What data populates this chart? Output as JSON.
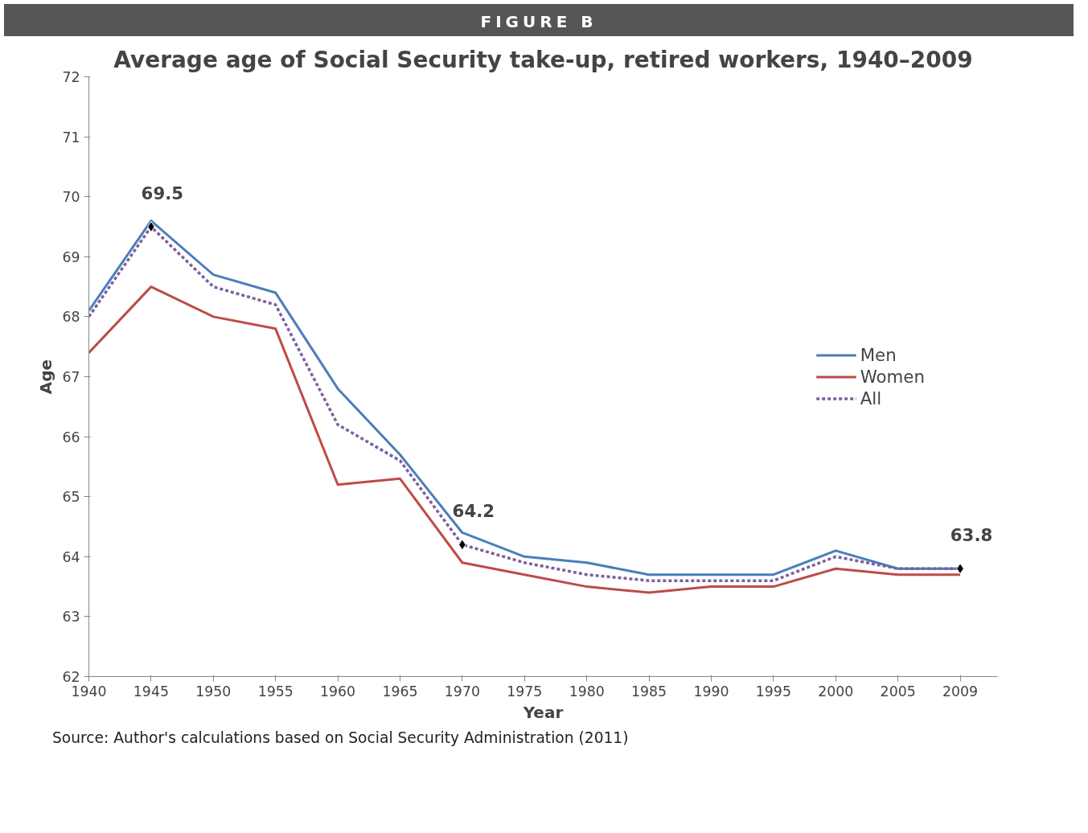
{
  "chart_data": {
    "type": "line",
    "title": "Average age of Social Security take-up, retired workers, 1940–2009",
    "xlabel": "Year",
    "ylabel": "Age",
    "categories": [
      "1940",
      "1945",
      "1950",
      "1955",
      "1960",
      "1965",
      "1970",
      "1975",
      "1980",
      "1985",
      "1990",
      "1995",
      "2000",
      "2005",
      "2009"
    ],
    "series": [
      {
        "name": "Men",
        "color": "#4a7ebb",
        "line_style": "solid",
        "values": [
          68.1,
          69.6,
          68.7,
          68.4,
          66.8,
          65.7,
          64.4,
          64.0,
          63.9,
          63.7,
          63.7,
          63.7,
          64.1,
          63.8,
          63.8
        ]
      },
      {
        "name": "Women",
        "color": "#be4b48",
        "line_style": "solid",
        "values": [
          67.4,
          68.5,
          68.0,
          67.8,
          65.2,
          65.3,
          63.9,
          63.7,
          63.5,
          63.4,
          63.5,
          63.5,
          63.8,
          63.7,
          63.7
        ]
      },
      {
        "name": "All",
        "color": "#7d60a0",
        "line_style": "dotted",
        "values": [
          68.0,
          69.5,
          68.5,
          68.2,
          66.2,
          65.6,
          64.2,
          63.9,
          63.7,
          63.6,
          63.6,
          63.6,
          64.0,
          63.8,
          63.8
        ]
      }
    ],
    "ylim": [
      62,
      72
    ],
    "yticks": [
      62,
      63,
      64,
      65,
      66,
      67,
      68,
      69,
      70,
      71,
      72
    ],
    "grid": false,
    "legend": "right",
    "annotations": [
      "FIGURE B",
      {
        "text": "69.5",
        "x": "1945",
        "y": 69.5
      },
      {
        "text": "64.2",
        "x": "1970",
        "y": 64.2
      },
      {
        "text": "63.8",
        "x": "2009",
        "y": 63.8
      },
      "Source: Author's calculations based on Social Security Administration (2011)"
    ]
  }
}
